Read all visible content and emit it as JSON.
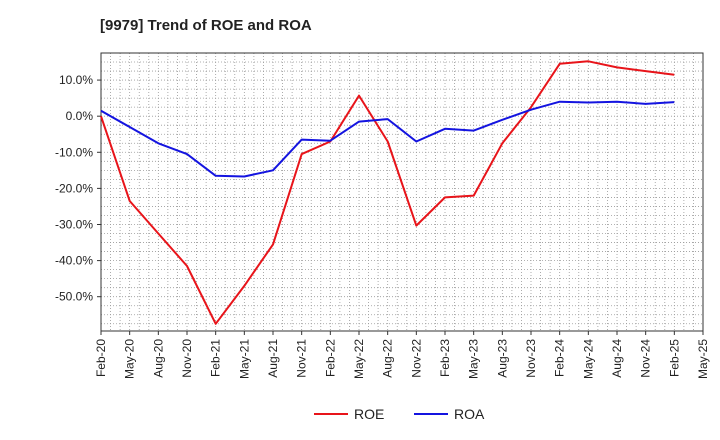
{
  "chart_data": {
    "type": "line",
    "title": "[9979]  Trend of ROE and ROA",
    "xlabel": "",
    "ylabel": "",
    "x": [
      "Feb-20",
      "May-20",
      "Aug-20",
      "Nov-20",
      "Feb-21",
      "May-21",
      "Aug-21",
      "Nov-21",
      "Feb-22",
      "May-22",
      "Aug-22",
      "Nov-22",
      "Feb-23",
      "May-23",
      "Aug-23",
      "Nov-23",
      "Feb-24",
      "May-24",
      "Aug-24",
      "Nov-24",
      "Feb-25"
    ],
    "x_tick_labels": [
      "Feb-20",
      "May-20",
      "Aug-20",
      "Nov-20",
      "Feb-21",
      "May-21",
      "Aug-21",
      "Nov-21",
      "Feb-22",
      "May-22",
      "Aug-22",
      "Nov-22",
      "Feb-23",
      "May-23",
      "Aug-23",
      "Nov-23",
      "Feb-24",
      "May-24",
      "Aug-24",
      "Nov-24",
      "Feb-25",
      "May-25"
    ],
    "y_ticks": [
      10,
      0,
      -10,
      -20,
      -30,
      -40,
      -50
    ],
    "y_tick_labels": [
      "10.0%",
      "0.0%",
      "-10.0%",
      "-20.0%",
      "-30.0%",
      "-40.0%",
      "-50.0%"
    ],
    "ylim": [
      -59.5,
      17.5
    ],
    "grid": true,
    "legend_position": "bottom",
    "series": [
      {
        "name": "ROE",
        "color": "#e8141a",
        "values": [
          0.0,
          -23.5,
          -32.5,
          -41.5,
          -57.5,
          -47.0,
          -35.5,
          -10.5,
          -7.0,
          5.7,
          -7.0,
          -30.3,
          -22.5,
          -22.0,
          -7.5,
          2.5,
          14.5,
          15.2,
          13.5,
          12.5,
          11.5
        ]
      },
      {
        "name": "ROA",
        "color": "#1414e0",
        "values": [
          1.5,
          -3.0,
          -7.5,
          -10.5,
          -16.5,
          -16.7,
          -15.0,
          -6.5,
          -6.8,
          -1.5,
          -0.8,
          -7.0,
          -3.5,
          -4.0,
          -1.0,
          1.8,
          4.0,
          3.8,
          4.0,
          3.4,
          3.9
        ]
      }
    ]
  }
}
